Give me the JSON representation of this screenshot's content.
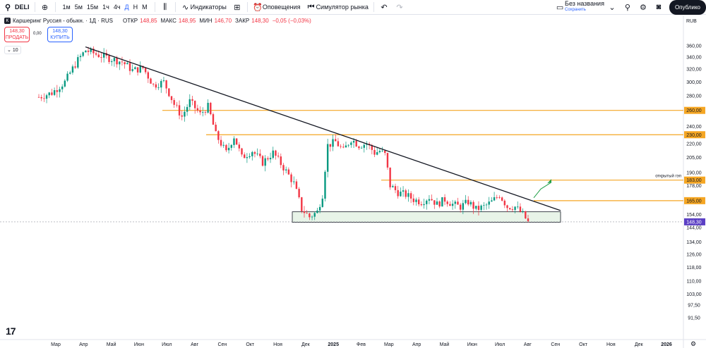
{
  "toolbar": {
    "symbol": "DELI",
    "intervals": [
      "1м",
      "5м",
      "15м",
      "1ч",
      "4ч",
      "Д",
      "Н",
      "М"
    ],
    "active_interval": "Д",
    "indicators_label": "Индикаторы",
    "alerts_label": "Оповещения",
    "replay_label": "Симулятор рынка",
    "layout_name": "Без названия",
    "layout_status": "Сохранить",
    "publish_label": "Опублико"
  },
  "legend": {
    "title": "Каршеринг Руссия - обыкн. · 1Д · RUS",
    "open_label": "ОТКР",
    "open": "148,85",
    "high_label": "МАКС",
    "high": "148,95",
    "low_label": "МИН",
    "low": "146,70",
    "close_label": "ЗАКР",
    "close": "148,30",
    "change": "−0,05 (−0,03%)",
    "sell_price": "148,30",
    "sell_label": "ПРОДАТЬ",
    "spread": "0,00",
    "buy_price": "148,30",
    "buy_label": "КУПИТЬ",
    "volume_toggle": "10",
    "currency": "RUB"
  },
  "colors": {
    "up": "#089981",
    "down": "#f23645",
    "level": "#f5a623",
    "accent": "#2962ff",
    "box": "#e6f3e6"
  },
  "annotations": {
    "gap_label": "открытый гэп"
  },
  "chart_data": {
    "type": "candlestick",
    "price_axis": [
      "360,00",
      "340,00",
      "320,00",
      "300,00",
      "280,00",
      "260,00",
      "240,00",
      "230,00",
      "220,00",
      "205,00",
      "190,00",
      "183,00",
      "178,00",
      "165,00",
      "154,00",
      "148,30",
      "144,00",
      "134,00",
      "126,00",
      "118,00",
      "110,00",
      "103,00",
      "97,50",
      "91,50"
    ],
    "time_axis": [
      "Мар",
      "Апр",
      "Май",
      "Июн",
      "Июл",
      "Авг",
      "Сен",
      "Окт",
      "Ноя",
      "Дек",
      "2025",
      "Фев",
      "Мар",
      "Апр",
      "Май",
      "Июн",
      "Июл",
      "Авг",
      "Сен",
      "Окт",
      "Ноя",
      "Дек",
      "2026"
    ],
    "levels": [
      {
        "label": "260,00",
        "value": 260
      },
      {
        "label": "230,00",
        "value": 230
      },
      {
        "label": "183,00",
        "value": 183
      },
      {
        "label": "165,00",
        "value": 165
      }
    ],
    "last_price": {
      "label": "148,30",
      "value": 148.3
    },
    "trendline": {
      "from": [
        "2024-04",
        358
      ],
      "to": [
        "2025-09",
        157
      ]
    },
    "support_zone": {
      "from": "2024-12",
      "to": "2025-09",
      "low": 148,
      "high": 156
    },
    "series_price_path": [
      [
        0,
        278
      ],
      [
        5,
        284
      ],
      [
        10,
        300
      ],
      [
        15,
        335
      ],
      [
        18,
        352
      ],
      [
        22,
        345
      ],
      [
        27,
        338
      ],
      [
        32,
        332
      ],
      [
        36,
        318
      ],
      [
        40,
        322
      ],
      [
        44,
        295
      ],
      [
        48,
        300
      ],
      [
        52,
        268
      ],
      [
        55,
        252
      ],
      [
        58,
        272
      ],
      [
        62,
        255
      ],
      [
        65,
        265
      ],
      [
        68,
        230
      ],
      [
        72,
        210
      ],
      [
        75,
        228
      ],
      [
        78,
        205
      ],
      [
        82,
        212
      ],
      [
        86,
        200
      ],
      [
        90,
        210
      ],
      [
        94,
        195
      ],
      [
        98,
        180
      ],
      [
        101,
        158
      ],
      [
        104,
        152
      ],
      [
        107,
        156
      ],
      [
        109,
        170
      ],
      [
        111,
        218
      ],
      [
        114,
        222
      ],
      [
        117,
        212
      ],
      [
        120,
        225
      ],
      [
        123,
        218
      ],
      [
        126,
        220
      ],
      [
        129,
        210
      ],
      [
        131,
        212
      ],
      [
        133,
        208
      ],
      [
        135,
        178
      ],
      [
        138,
        172
      ],
      [
        141,
        170
      ],
      [
        144,
        166
      ],
      [
        147,
        164
      ],
      [
        150,
        168
      ],
      [
        153,
        162
      ],
      [
        156,
        166
      ],
      [
        159,
        162
      ],
      [
        162,
        160
      ],
      [
        165,
        164
      ],
      [
        168,
        158
      ],
      [
        171,
        160
      ],
      [
        174,
        164
      ],
      [
        177,
        170
      ],
      [
        180,
        160
      ],
      [
        183,
        160
      ],
      [
        186,
        154
      ],
      [
        188,
        148
      ]
    ]
  }
}
